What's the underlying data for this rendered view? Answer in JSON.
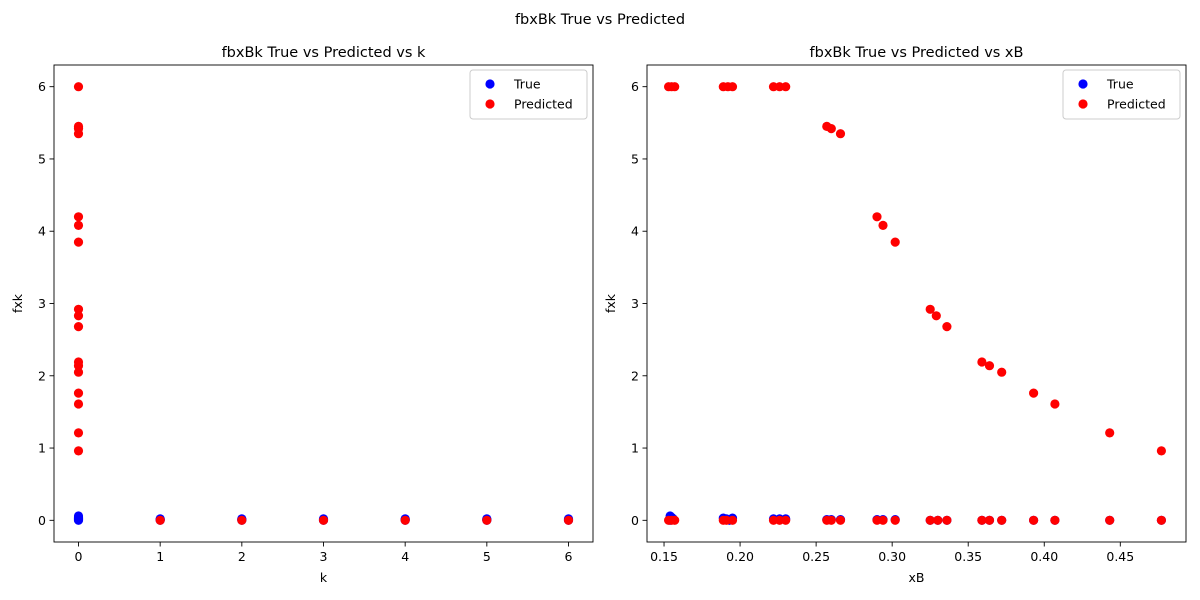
{
  "figure": {
    "suptitle": "fbxBk True vs Predicted"
  },
  "chart_data": [
    {
      "type": "scatter",
      "title": "fbxBk True vs Predicted vs k",
      "xlabel": "k",
      "ylabel": "fxk",
      "xlim": [
        -0.3,
        6.3
      ],
      "ylim": [
        -0.3,
        6.3
      ],
      "xticks": [
        0,
        1,
        2,
        3,
        4,
        5,
        6
      ],
      "xtick_labels": [
        "0",
        "1",
        "2",
        "3",
        "4",
        "5",
        "6"
      ],
      "yticks": [
        0,
        1,
        2,
        3,
        4,
        5,
        6
      ],
      "ytick_labels": [
        "0",
        "1",
        "2",
        "3",
        "4",
        "5",
        "6"
      ],
      "grid": false,
      "legend": {
        "position": "top-right",
        "entries": [
          "True",
          "Predicted"
        ]
      },
      "series": [
        {
          "name": "True",
          "color": "#0000ff",
          "points": [
            [
              0,
              0.06
            ],
            [
              0,
              0.04
            ],
            [
              0,
              0.03
            ],
            [
              0,
              0.02
            ],
            [
              0,
              0.01
            ],
            [
              0,
              0.0
            ],
            [
              1,
              0.02
            ],
            [
              1,
              0.01
            ],
            [
              1,
              0.0
            ],
            [
              2,
              0.02
            ],
            [
              2,
              0.01
            ],
            [
              2,
              0.0
            ],
            [
              3,
              0.02
            ],
            [
              3,
              0.01
            ],
            [
              3,
              0.0
            ],
            [
              4,
              0.02
            ],
            [
              4,
              0.01
            ],
            [
              4,
              0.0
            ],
            [
              5,
              0.02
            ],
            [
              5,
              0.01
            ],
            [
              5,
              0.0
            ],
            [
              6,
              0.02
            ],
            [
              6,
              0.01
            ],
            [
              6,
              0.0
            ]
          ]
        },
        {
          "name": "Predicted",
          "color": "#ff0000",
          "points": [
            [
              0,
              6.0
            ],
            [
              0,
              5.45
            ],
            [
              0,
              5.42
            ],
            [
              0,
              5.35
            ],
            [
              0,
              4.2
            ],
            [
              0,
              4.08
            ],
            [
              0,
              3.85
            ],
            [
              0,
              2.92
            ],
            [
              0,
              2.83
            ],
            [
              0,
              2.68
            ],
            [
              0,
              2.19
            ],
            [
              0,
              2.14
            ],
            [
              0,
              2.05
            ],
            [
              0,
              1.76
            ],
            [
              0,
              1.61
            ],
            [
              0,
              1.21
            ],
            [
              0,
              0.96
            ],
            [
              1,
              0.0
            ],
            [
              2,
              0.0
            ],
            [
              3,
              0.0
            ],
            [
              4,
              0.0
            ],
            [
              5,
              0.0
            ],
            [
              6,
              0.0
            ]
          ]
        }
      ]
    },
    {
      "type": "scatter",
      "title": "fbxBk True vs Predicted vs xB",
      "xlabel": "xB",
      "ylabel": "fxk",
      "xlim": [
        0.1388,
        0.4932
      ],
      "ylim": [
        -0.3,
        6.3
      ],
      "xticks": [
        0.15,
        0.2,
        0.25,
        0.3,
        0.35,
        0.4,
        0.45
      ],
      "xtick_labels": [
        "0.15",
        "0.20",
        "0.25",
        "0.30",
        "0.35",
        "0.40",
        "0.45"
      ],
      "yticks": [
        0,
        1,
        2,
        3,
        4,
        5,
        6
      ],
      "ytick_labels": [
        "0",
        "1",
        "2",
        "3",
        "4",
        "5",
        "6"
      ],
      "grid": false,
      "legend": {
        "position": "top-right",
        "entries": [
          "True",
          "Predicted"
        ]
      },
      "series": [
        {
          "name": "True",
          "color": "#0000ff",
          "points": [
            [
              0.154,
              0.06
            ],
            [
              0.155,
              0.04
            ],
            [
              0.156,
              0.02
            ],
            [
              0.154,
              0.0
            ],
            [
              0.189,
              0.03
            ],
            [
              0.191,
              0.02
            ],
            [
              0.195,
              0.03
            ],
            [
              0.193,
              0.0
            ],
            [
              0.222,
              0.02
            ],
            [
              0.226,
              0.02
            ],
            [
              0.23,
              0.02
            ],
            [
              0.257,
              0.01
            ],
            [
              0.26,
              0.01
            ],
            [
              0.266,
              0.01
            ],
            [
              0.29,
              0.01
            ],
            [
              0.294,
              0.01
            ],
            [
              0.302,
              0.01
            ],
            [
              0.325,
              0.0
            ],
            [
              0.33,
              0.0
            ],
            [
              0.336,
              0.0
            ],
            [
              0.359,
              0.0
            ],
            [
              0.364,
              0.0
            ],
            [
              0.372,
              0.0
            ],
            [
              0.393,
              0.0
            ],
            [
              0.407,
              0.0
            ],
            [
              0.443,
              0.0
            ],
            [
              0.477,
              0.0
            ]
          ]
        },
        {
          "name": "Predicted",
          "color": "#ff0000",
          "points": [
            [
              0.153,
              6.0
            ],
            [
              0.155,
              6.0
            ],
            [
              0.157,
              6.0
            ],
            [
              0.189,
              6.0
            ],
            [
              0.192,
              6.0
            ],
            [
              0.195,
              6.0
            ],
            [
              0.222,
              6.0
            ],
            [
              0.226,
              6.0
            ],
            [
              0.23,
              6.0
            ],
            [
              0.257,
              5.45
            ],
            [
              0.26,
              5.42
            ],
            [
              0.266,
              5.35
            ],
            [
              0.29,
              4.2
            ],
            [
              0.294,
              4.08
            ],
            [
              0.302,
              3.85
            ],
            [
              0.325,
              2.92
            ],
            [
              0.329,
              2.83
            ],
            [
              0.336,
              2.68
            ],
            [
              0.359,
              2.19
            ],
            [
              0.364,
              2.14
            ],
            [
              0.372,
              2.05
            ],
            [
              0.393,
              1.76
            ],
            [
              0.407,
              1.61
            ],
            [
              0.443,
              1.21
            ],
            [
              0.477,
              0.96
            ],
            [
              0.153,
              0.0
            ],
            [
              0.155,
              0.0
            ],
            [
              0.157,
              0.0
            ],
            [
              0.189,
              0.0
            ],
            [
              0.191,
              0.0
            ],
            [
              0.195,
              0.0
            ],
            [
              0.222,
              0.0
            ],
            [
              0.226,
              0.0
            ],
            [
              0.23,
              0.0
            ],
            [
              0.257,
              0.0
            ],
            [
              0.26,
              0.0
            ],
            [
              0.266,
              0.0
            ],
            [
              0.29,
              0.0
            ],
            [
              0.294,
              0.0
            ],
            [
              0.302,
              0.0
            ],
            [
              0.325,
              0.0
            ],
            [
              0.33,
              0.0
            ],
            [
              0.336,
              0.0
            ],
            [
              0.359,
              0.0
            ],
            [
              0.364,
              0.0
            ],
            [
              0.372,
              0.0
            ],
            [
              0.393,
              0.0
            ],
            [
              0.407,
              0.0
            ],
            [
              0.443,
              0.0
            ],
            [
              0.477,
              0.0
            ]
          ]
        }
      ]
    }
  ]
}
